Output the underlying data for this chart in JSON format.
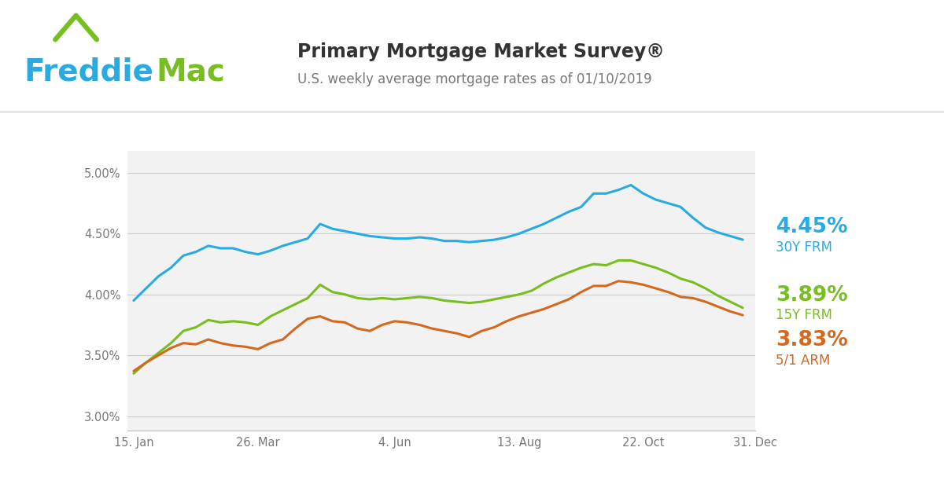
{
  "title": "Primary Mortgage Market Survey®",
  "subtitle": "U.S. weekly average mortgage rates as of 01/10/2019",
  "freddie_blue": "#29abe2",
  "freddie_green": "#78be20",
  "line_30y_color": "#29abe2",
  "line_15y_color": "#78be20",
  "line_arm_color": "#d2691e",
  "label_30y": "4.45%",
  "label_30y_name": "30Y FRM",
  "label_15y": "3.89%",
  "label_15y_name": "15Y FRM",
  "label_arm": "3.83%",
  "label_arm_name": "5/1 ARM",
  "y_ticks": [
    3.0,
    3.5,
    4.0,
    4.5,
    5.0
  ],
  "y_tick_labels": [
    "3.00%",
    "3.50%",
    "4.00%",
    "4.50%",
    "5.00%"
  ],
  "ylim": [
    2.88,
    5.18
  ],
  "x_tick_labels": [
    "15. Jan",
    "26. Mar",
    "4. Jun",
    "13. Aug",
    "22. Oct",
    "31. Dec"
  ],
  "x_tick_positions": [
    0,
    10,
    21,
    31,
    41,
    50
  ],
  "data_30y": [
    3.95,
    4.05,
    4.15,
    4.22,
    4.32,
    4.35,
    4.4,
    4.38,
    4.38,
    4.35,
    4.33,
    4.36,
    4.4,
    4.43,
    4.46,
    4.58,
    4.54,
    4.52,
    4.5,
    4.48,
    4.47,
    4.46,
    4.46,
    4.47,
    4.46,
    4.44,
    4.44,
    4.43,
    4.44,
    4.45,
    4.47,
    4.5,
    4.54,
    4.58,
    4.63,
    4.68,
    4.72,
    4.83,
    4.83,
    4.86,
    4.9,
    4.83,
    4.78,
    4.75,
    4.72,
    4.63,
    4.55,
    4.51,
    4.48,
    4.45
  ],
  "data_15y": [
    3.35,
    3.44,
    3.52,
    3.6,
    3.7,
    3.73,
    3.79,
    3.77,
    3.78,
    3.77,
    3.75,
    3.82,
    3.87,
    3.92,
    3.97,
    4.08,
    4.02,
    4.0,
    3.97,
    3.96,
    3.97,
    3.96,
    3.97,
    3.98,
    3.97,
    3.95,
    3.94,
    3.93,
    3.94,
    3.96,
    3.98,
    4.0,
    4.03,
    4.09,
    4.14,
    4.18,
    4.22,
    4.25,
    4.24,
    4.28,
    4.28,
    4.25,
    4.22,
    4.18,
    4.13,
    4.1,
    4.05,
    3.99,
    3.94,
    3.89
  ],
  "data_arm": [
    3.37,
    3.44,
    3.5,
    3.56,
    3.6,
    3.59,
    3.63,
    3.6,
    3.58,
    3.57,
    3.55,
    3.6,
    3.63,
    3.72,
    3.8,
    3.82,
    3.78,
    3.77,
    3.72,
    3.7,
    3.75,
    3.78,
    3.77,
    3.75,
    3.72,
    3.7,
    3.68,
    3.65,
    3.7,
    3.73,
    3.78,
    3.82,
    3.85,
    3.88,
    3.92,
    3.96,
    4.02,
    4.07,
    4.07,
    4.11,
    4.1,
    4.08,
    4.05,
    4.02,
    3.98,
    3.97,
    3.94,
    3.9,
    3.86,
    3.83
  ]
}
